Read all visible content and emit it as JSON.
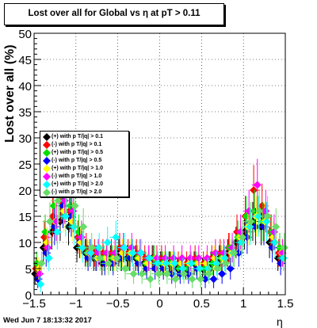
{
  "title": "Lost over all for Global vs  η at pT > 0.11",
  "timestamp": "Wed Jun  7 18:13:32 2017",
  "chart_data": {
    "type": "scatter",
    "title": "Lost over all for Global vs  η at pT > 0.11",
    "xlabel": "η",
    "ylabel": "Lost over all (%)",
    "xlim": [
      -1.5,
      1.5
    ],
    "ylim": [
      0,
      50
    ],
    "x_ticks": [
      "−1.5",
      "−1",
      "−0.5",
      "0",
      "0.5",
      "1",
      "1.5"
    ],
    "y_ticks": [
      "0",
      "5",
      "10",
      "15",
      "20",
      "25",
      "30",
      "35",
      "40",
      "45",
      "50"
    ],
    "grid": true,
    "legend_position": "middle-left",
    "x": [
      -1.45,
      -1.35,
      -1.25,
      -1.15,
      -1.05,
      -0.95,
      -0.85,
      -0.75,
      -0.65,
      -0.55,
      -0.45,
      -0.35,
      -0.25,
      -0.15,
      -0.05,
      0.05,
      0.15,
      0.25,
      0.35,
      0.45,
      0.55,
      0.65,
      0.75,
      0.85,
      0.95,
      1.05,
      1.15,
      1.25,
      1.35,
      1.45
    ],
    "series": [
      {
        "name": "(+) with p T/|q| > 0.1",
        "color": "#000000",
        "values": [
          4,
          9,
          12,
          14,
          13,
          9,
          8,
          7,
          6,
          7,
          8,
          7,
          7,
          6,
          7,
          6,
          6,
          5,
          5,
          6,
          5,
          6,
          7,
          8,
          10,
          12,
          14,
          13,
          10,
          7
        ]
      },
      {
        "name": "(-) with p T/|q| > 0.1",
        "color": "#ff0000",
        "values": [
          5,
          11,
          15,
          18,
          16,
          11,
          9,
          8,
          8,
          8,
          9,
          8,
          8,
          7,
          7,
          7,
          6,
          6,
          6,
          7,
          6,
          7,
          8,
          9,
          12,
          15,
          20,
          17,
          12,
          8
        ]
      },
      {
        "name": "(+) with p T/|q| > 0.5",
        "color": "#00e000",
        "values": [
          6,
          12,
          17,
          19,
          17,
          12,
          8,
          7,
          7,
          7,
          7,
          7,
          7,
          6,
          7,
          6,
          6,
          5,
          5,
          6,
          5,
          6,
          7,
          9,
          11,
          15,
          16,
          14,
          12,
          9
        ]
      },
      {
        "name": "(-) with p T/|q| > 0.5",
        "color": "#0000ff",
        "values": [
          3,
          8,
          13,
          17,
          15,
          10,
          7,
          7,
          6,
          6,
          7,
          7,
          6,
          5,
          5,
          5,
          4,
          4,
          4,
          5,
          3,
          3,
          4,
          5,
          8,
          11,
          13,
          13,
          9,
          6
        ]
      },
      {
        "name": "(+) with p T/|q| > 1.0",
        "color": "#ffff00",
        "values": [
          5,
          10,
          14,
          16,
          14,
          10,
          8,
          7,
          7,
          7,
          8,
          8,
          7,
          6,
          7,
          6,
          6,
          6,
          6,
          6,
          6,
          7,
          7,
          8,
          11,
          13,
          15,
          14,
          11,
          8
        ]
      },
      {
        "name": "(-) with p T/|q| > 1.0",
        "color": "#ff00ff",
        "values": [
          4,
          9,
          14,
          18,
          16,
          11,
          8,
          8,
          8,
          8,
          9,
          9,
          8,
          7,
          7,
          7,
          7,
          7,
          7,
          7,
          7,
          8,
          8,
          9,
          12,
          16,
          21,
          16,
          12,
          8
        ]
      },
      {
        "name": "(+) with p T/|q| > 2.0",
        "color": "#00ffff",
        "values": [
          2,
          7,
          12,
          15,
          13,
          9,
          8,
          9,
          10,
          11,
          9,
          8,
          8,
          7,
          6,
          6,
          6,
          5,
          6,
          5,
          5,
          6,
          7,
          8,
          10,
          13,
          15,
          14,
          10,
          7
        ]
      },
      {
        "name": "(-) with p T/|q| > 2.0",
        "color": "#66dd66",
        "values": [
          6,
          14,
          18,
          20,
          17,
          13,
          9,
          7,
          6,
          7,
          5,
          4,
          4,
          3,
          4,
          4,
          3,
          4,
          3,
          3,
          4,
          5,
          6,
          8,
          11,
          14,
          16,
          15,
          13,
          9
        ]
      }
    ]
  }
}
